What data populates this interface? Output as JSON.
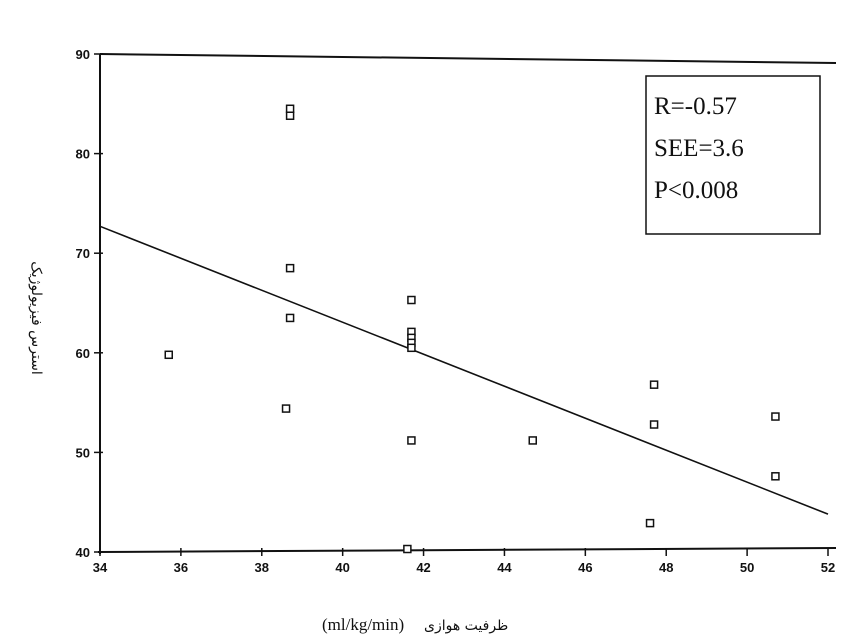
{
  "chart_data": {
    "type": "scatter",
    "xlabel": "ظرفیت هوازی",
    "xlabel_unit": "(ml/kg/min)",
    "ylabel": "استرس فیزیولوژیک",
    "xlim": [
      34,
      52
    ],
    "ylim": [
      40,
      90
    ],
    "xticks": [
      "34",
      "36",
      "38",
      "40",
      "42",
      "44",
      "46",
      "48",
      "50",
      "52"
    ],
    "yticks": [
      "40",
      "50",
      "60",
      "70",
      "80",
      "90"
    ],
    "points": [
      {
        "x": 35.7,
        "y": 59.8
      },
      {
        "x": 38.7,
        "y": 84.5
      },
      {
        "x": 38.7,
        "y": 83.8
      },
      {
        "x": 38.7,
        "y": 68.5
      },
      {
        "x": 38.7,
        "y": 63.5
      },
      {
        "x": 38.6,
        "y": 54.4
      },
      {
        "x": 41.7,
        "y": 65.3
      },
      {
        "x": 41.7,
        "y": 62.1
      },
      {
        "x": 41.7,
        "y": 61.5
      },
      {
        "x": 41.7,
        "y": 61.0
      },
      {
        "x": 41.7,
        "y": 60.5
      },
      {
        "x": 41.7,
        "y": 51.2
      },
      {
        "x": 41.6,
        "y": 40.3
      },
      {
        "x": 44.7,
        "y": 51.2
      },
      {
        "x": 47.7,
        "y": 56.8
      },
      {
        "x": 47.7,
        "y": 52.8
      },
      {
        "x": 47.6,
        "y": 42.9
      },
      {
        "x": 50.7,
        "y": 53.6
      },
      {
        "x": 50.7,
        "y": 47.6
      }
    ],
    "fit_line": {
      "x": [
        34,
        52
      ],
      "y": [
        72.7,
        43.8
      ]
    },
    "stats": [
      "R=-0.57",
      "SEE=3.6",
      "P<0.008"
    ],
    "legend_position": "top-right",
    "grid": false
  }
}
